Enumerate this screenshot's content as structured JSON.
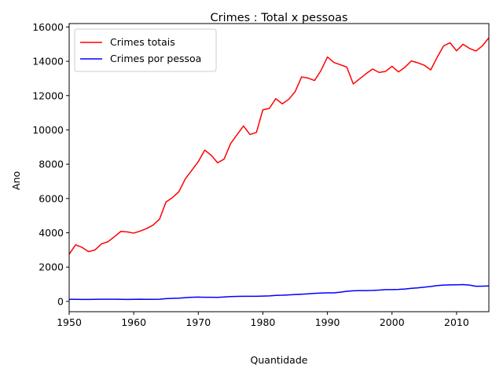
{
  "chart_data": {
    "type": "line",
    "title": "Crimes : Total x pessoas",
    "xlabel": "Quantidade",
    "ylabel": "Ano",
    "xlim": [
      1950,
      2015
    ],
    "ylim": [
      -600,
      16200
    ],
    "xticks": [
      1950,
      1960,
      1970,
      1980,
      1990,
      2000,
      2010
    ],
    "yticks": [
      0,
      2000,
      4000,
      6000,
      8000,
      10000,
      12000,
      14000,
      16000
    ],
    "grid": false,
    "legend_position": "upper-left",
    "x": [
      1950,
      1951,
      1952,
      1953,
      1954,
      1955,
      1956,
      1957,
      1958,
      1959,
      1960,
      1961,
      1962,
      1963,
      1964,
      1965,
      1966,
      1967,
      1968,
      1969,
      1970,
      1971,
      1972,
      1973,
      1974,
      1975,
      1976,
      1977,
      1978,
      1979,
      1980,
      1981,
      1982,
      1983,
      1984,
      1985,
      1986,
      1987,
      1988,
      1989,
      1990,
      1991,
      1992,
      1993,
      1994,
      1995,
      1996,
      1997,
      1998,
      1999,
      2000,
      2001,
      2002,
      2003,
      2004,
      2005,
      2006,
      2007,
      2008,
      2009,
      2010,
      2011,
      2012,
      2013,
      2014,
      2015
    ],
    "series": [
      {
        "name": "Crimes totais",
        "color": "#ff0000",
        "values": [
          2750,
          3300,
          3150,
          2900,
          3000,
          3350,
          3480,
          3770,
          4080,
          4050,
          3980,
          4100,
          4250,
          4450,
          4800,
          5800,
          6050,
          6400,
          7150,
          7650,
          8150,
          8820,
          8520,
          8080,
          8300,
          9200,
          9720,
          10230,
          9730,
          9850,
          11170,
          11250,
          11820,
          11520,
          11780,
          12230,
          13090,
          13020,
          12880,
          13460,
          14250,
          13930,
          13800,
          13660,
          12680,
          12980,
          13280,
          13550,
          13350,
          13410,
          13710,
          13380,
          13650,
          14020,
          13910,
          13770,
          13500,
          14240,
          14900,
          15080,
          14610,
          14990,
          14750,
          14600,
          14900,
          15370
        ]
      },
      {
        "name": "Crimes por pessoa",
        "color": "#0000ff",
        "values": [
          120,
          120,
          115,
          115,
          120,
          125,
          125,
          125,
          120,
          115,
          120,
          125,
          120,
          120,
          125,
          160,
          180,
          190,
          220,
          240,
          250,
          240,
          240,
          235,
          260,
          280,
          290,
          300,
          300,
          300,
          310,
          320,
          350,
          360,
          380,
          400,
          420,
          440,
          470,
          490,
          500,
          500,
          540,
          590,
          620,
          630,
          630,
          640,
          660,
          690,
          690,
          700,
          720,
          760,
          790,
          830,
          870,
          920,
          950,
          960,
          970,
          980,
          950,
          880,
          890,
          900
        ]
      }
    ]
  }
}
